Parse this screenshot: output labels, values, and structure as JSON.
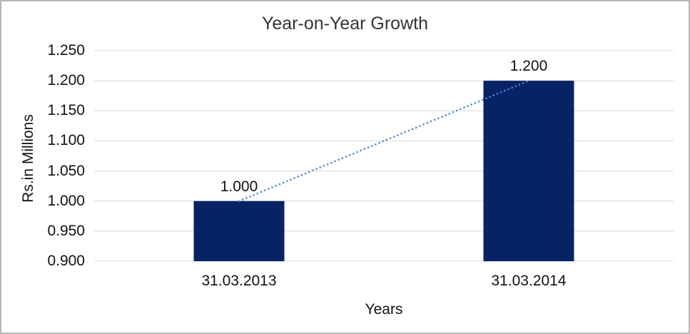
{
  "chart_data": {
    "type": "bar",
    "title": "Year-on-Year Growth",
    "xlabel": "Years",
    "ylabel": "Rs.in Millions",
    "categories": [
      "31.03.2013",
      "31.03.2014"
    ],
    "values": [
      1.0,
      1.2
    ],
    "value_labels": [
      "1.000",
      "1.200"
    ],
    "ylim": [
      0.9,
      1.25
    ],
    "ytick_step": 0.05,
    "ytick_labels": [
      "0.900",
      "0.950",
      "1.000",
      "1.050",
      "1.100",
      "1.150",
      "1.200",
      "1.250"
    ],
    "grid": true,
    "legend": "none",
    "trendline": {
      "style": "dotted",
      "from_category": "31.03.2013",
      "to_category": "31.03.2014"
    },
    "colors": {
      "bar": "#062365",
      "trendline": "#4E86D8",
      "gridline": "#D9D9D9",
      "text": "#111111",
      "title_text": "#333333",
      "frame_border": "#B5B5B5",
      "background": "#FFFFFF"
    }
  }
}
